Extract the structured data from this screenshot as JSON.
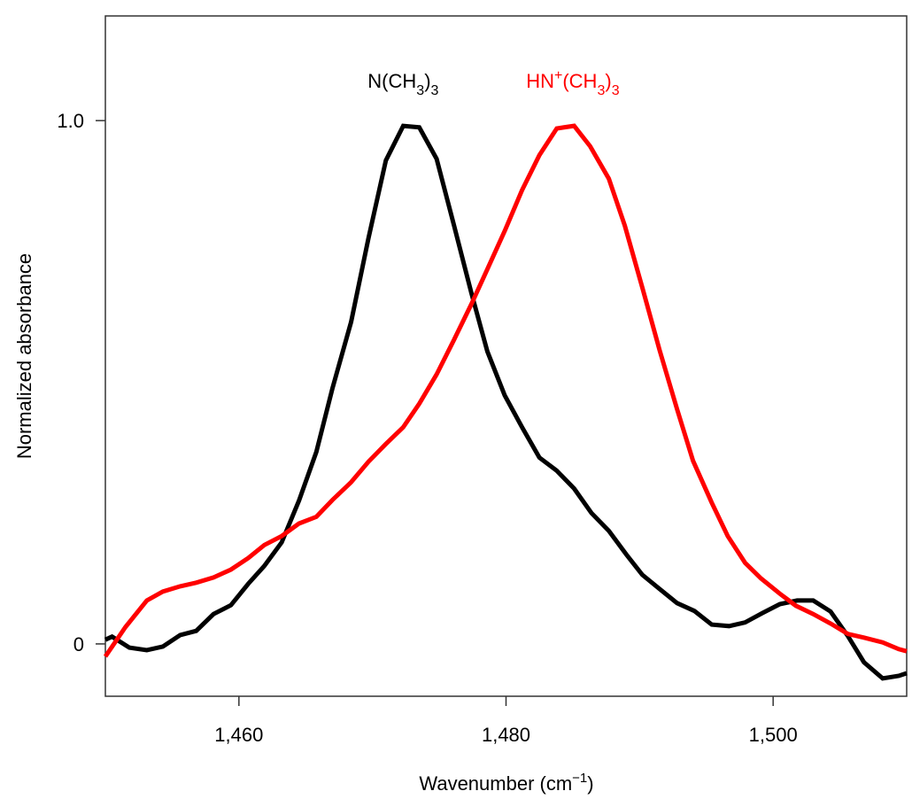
{
  "chart_data": {
    "type": "line",
    "title": "",
    "xlabel_parts": [
      "Wavenumber (cm",
      "−1",
      ")"
    ],
    "ylabel": "Normalized absorbance",
    "xlim": [
      1450,
      1510
    ],
    "ylim": [
      -0.1,
      1.2
    ],
    "xticks": [
      1460,
      1480,
      1500
    ],
    "xtick_labels": [
      "1,460",
      "1,480",
      "1,500"
    ],
    "yticks": [
      0,
      1.0
    ],
    "ytick_labels": [
      "0",
      "1.0"
    ],
    "grid": false,
    "series": [
      {
        "label_parts": [
          "N(CH",
          "3",
          ")",
          "3"
        ],
        "label_x": 1472.3,
        "label_y": 1.08,
        "color": "#000000",
        "x": [
          1450.0,
          1450.5,
          1451.8,
          1453.1,
          1454.3,
          1455.6,
          1456.8,
          1458.1,
          1459.4,
          1460.7,
          1461.9,
          1463.2,
          1464.5,
          1465.8,
          1467.0,
          1468.4,
          1469.7,
          1471.0,
          1472.3,
          1473.5,
          1474.8,
          1476.1,
          1477.4,
          1478.6,
          1479.9,
          1481.2,
          1482.5,
          1483.8,
          1485.1,
          1486.4,
          1487.7,
          1489.0,
          1490.2,
          1491.5,
          1492.8,
          1494.1,
          1495.4,
          1496.7,
          1497.9,
          1499.2,
          1500.5,
          1501.8,
          1503.0,
          1504.3,
          1505.6,
          1506.8,
          1508.2,
          1509.4,
          1510.0
        ],
        "y": [
          0.008,
          0.014,
          -0.007,
          -0.012,
          -0.005,
          0.017,
          0.025,
          0.057,
          0.074,
          0.115,
          0.149,
          0.194,
          0.274,
          0.367,
          0.488,
          0.615,
          0.775,
          0.924,
          0.99,
          0.987,
          0.927,
          0.8,
          0.671,
          0.559,
          0.475,
          0.414,
          0.356,
          0.331,
          0.297,
          0.25,
          0.216,
          0.171,
          0.132,
          0.105,
          0.078,
          0.063,
          0.037,
          0.034,
          0.041,
          0.059,
          0.076,
          0.083,
          0.083,
          0.062,
          0.015,
          -0.035,
          -0.066,
          -0.061,
          -0.056
        ]
      },
      {
        "label_parts": [
          "HN",
          "+",
          "(CH",
          "3",
          ")",
          "3"
        ],
        "label_x": 1485.0,
        "label_y": 1.08,
        "color": "#ff0000",
        "x": [
          1450.0,
          1451.5,
          1453.1,
          1454.3,
          1455.6,
          1456.8,
          1458.1,
          1459.4,
          1460.7,
          1461.9,
          1463.2,
          1464.5,
          1465.8,
          1467.0,
          1468.4,
          1469.7,
          1471.0,
          1472.3,
          1473.5,
          1474.8,
          1476.1,
          1477.4,
          1478.6,
          1479.9,
          1481.2,
          1482.5,
          1483.8,
          1485.1,
          1486.3,
          1487.7,
          1488.9,
          1490.2,
          1491.5,
          1492.8,
          1494.0,
          1495.4,
          1496.6,
          1497.9,
          1499.1,
          1500.5,
          1501.7,
          1503.0,
          1504.3,
          1505.6,
          1506.8,
          1508.2,
          1509.4,
          1510.0
        ],
        "y": [
          -0.024,
          0.032,
          0.083,
          0.1,
          0.11,
          0.117,
          0.127,
          0.142,
          0.164,
          0.189,
          0.206,
          0.23,
          0.243,
          0.275,
          0.309,
          0.348,
          0.382,
          0.414,
          0.459,
          0.515,
          0.581,
          0.649,
          0.716,
          0.789,
          0.867,
          0.934,
          0.985,
          0.99,
          0.951,
          0.889,
          0.799,
          0.681,
          0.561,
          0.449,
          0.35,
          0.27,
          0.206,
          0.155,
          0.125,
          0.096,
          0.073,
          0.057,
          0.039,
          0.019,
          0.012,
          0.003,
          -0.01,
          -0.014
        ]
      }
    ]
  }
}
